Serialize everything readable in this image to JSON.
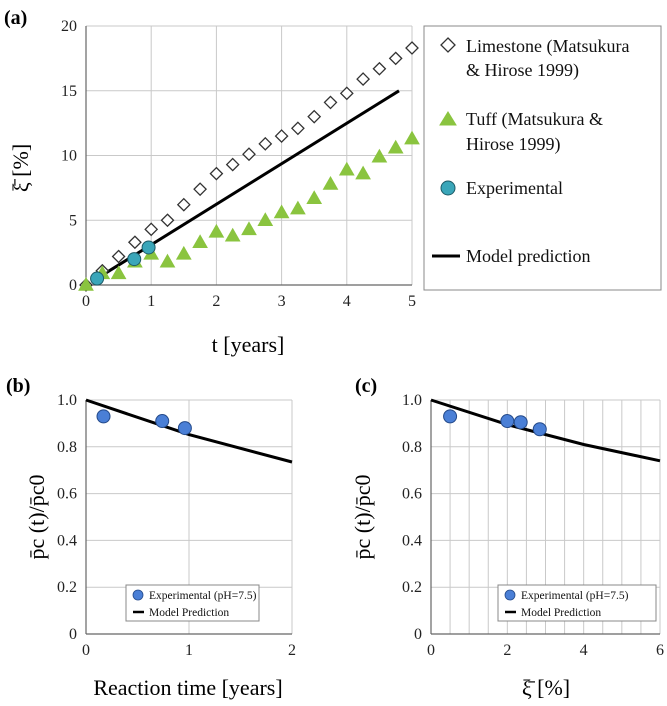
{
  "chart_data": [
    {
      "panel": "(a)",
      "type": "scatter",
      "xlabel": "t [years]",
      "ylabel": "ξ̄ [%]",
      "xlim": [
        0,
        5
      ],
      "ylim": [
        0,
        20
      ],
      "xticks": [
        "0",
        "1",
        "2",
        "3",
        "4",
        "5"
      ],
      "yticks": [
        "0",
        "5",
        "10",
        "15",
        "20"
      ],
      "grid": true,
      "legend_position": "right",
      "series": [
        {
          "name": "Limestone (Matsukura & Hirose 1999)",
          "marker": "open-diamond",
          "color": "#333333",
          "x": [
            0,
            0.25,
            0.5,
            0.75,
            1.0,
            1.25,
            1.5,
            1.75,
            2.0,
            2.25,
            2.5,
            2.75,
            3.0,
            3.25,
            3.5,
            3.75,
            4.0,
            4.25,
            4.5,
            4.75,
            5.0
          ],
          "y": [
            0.0,
            1.1,
            2.2,
            3.3,
            4.3,
            5.0,
            6.2,
            7.4,
            8.6,
            9.3,
            10.1,
            10.9,
            11.5,
            12.1,
            13.0,
            14.1,
            14.8,
            15.9,
            16.7,
            17.5,
            18.3
          ]
        },
        {
          "name": "Tuff (Matsukura & Hirose 1999)",
          "marker": "triangle",
          "color": "#8ac43f",
          "x": [
            0,
            0.25,
            0.5,
            0.75,
            1.0,
            1.25,
            1.5,
            1.75,
            2.0,
            2.25,
            2.5,
            2.75,
            3.0,
            3.25,
            3.5,
            3.75,
            4.0,
            4.25,
            4.5,
            4.75,
            5.0
          ],
          "y": [
            0.0,
            0.9,
            0.9,
            1.8,
            2.4,
            1.8,
            2.4,
            3.3,
            4.1,
            3.8,
            4.3,
            5.0,
            5.6,
            5.9,
            6.7,
            7.8,
            8.9,
            8.6,
            9.9,
            10.6,
            11.3
          ]
        },
        {
          "name": "Experimental",
          "marker": "circle",
          "color": "#3aa6b9",
          "x": [
            0.17,
            0.74,
            0.96
          ],
          "y": [
            0.5,
            2.0,
            2.9
          ]
        },
        {
          "name": "Model prediction",
          "marker": "line",
          "color": "#000000",
          "x": [
            0.2,
            4.8
          ],
          "y": [
            0.6,
            15.0
          ]
        }
      ]
    },
    {
      "panel": "(b)",
      "type": "scatter",
      "xlabel": "Reaction time [years]",
      "ylabel": "p̄c (t)/p̄c0",
      "xlim": [
        0,
        2
      ],
      "ylim": [
        0,
        1.0
      ],
      "xticks": [
        "0",
        "1",
        "2"
      ],
      "yticks": [
        "0",
        "0.2",
        "0.4",
        "0.6",
        "0.8",
        "1.0"
      ],
      "grid": true,
      "legend_position": "bottom-center",
      "series": [
        {
          "name": "Experimental (pH=7.5)",
          "marker": "circle",
          "color": "#4a7fd6",
          "x": [
            0.17,
            0.74,
            0.96
          ],
          "y": [
            0.93,
            0.91,
            0.88
          ]
        },
        {
          "name": "Model Prediction",
          "marker": "line",
          "color": "#000000",
          "x": [
            0,
            1,
            2
          ],
          "y": [
            1.0,
            0.852,
            0.735
          ]
        }
      ]
    },
    {
      "panel": "(c)",
      "type": "scatter",
      "xlabel": "ξ̄ [%]",
      "ylabel": "p̄c (t)/p̄c0",
      "xlim": [
        0,
        6
      ],
      "ylim": [
        0,
        1.0
      ],
      "xticks": [
        "0",
        "2",
        "4",
        "6"
      ],
      "yticks": [
        "0",
        "0.2",
        "0.4",
        "0.6",
        "0.8",
        "1.0"
      ],
      "grid": true,
      "legend_position": "bottom-center",
      "series": [
        {
          "name": "Experimental (pH=7.5)",
          "marker": "circle",
          "color": "#4a7fd6",
          "x": [
            0.5,
            2.0,
            2.35,
            2.85
          ],
          "y": [
            0.93,
            0.91,
            0.905,
            0.875
          ]
        },
        {
          "name": "Model Prediction",
          "marker": "line",
          "color": "#000000",
          "x": [
            0,
            2,
            4,
            6
          ],
          "y": [
            1.0,
            0.895,
            0.81,
            0.74
          ]
        }
      ]
    }
  ]
}
